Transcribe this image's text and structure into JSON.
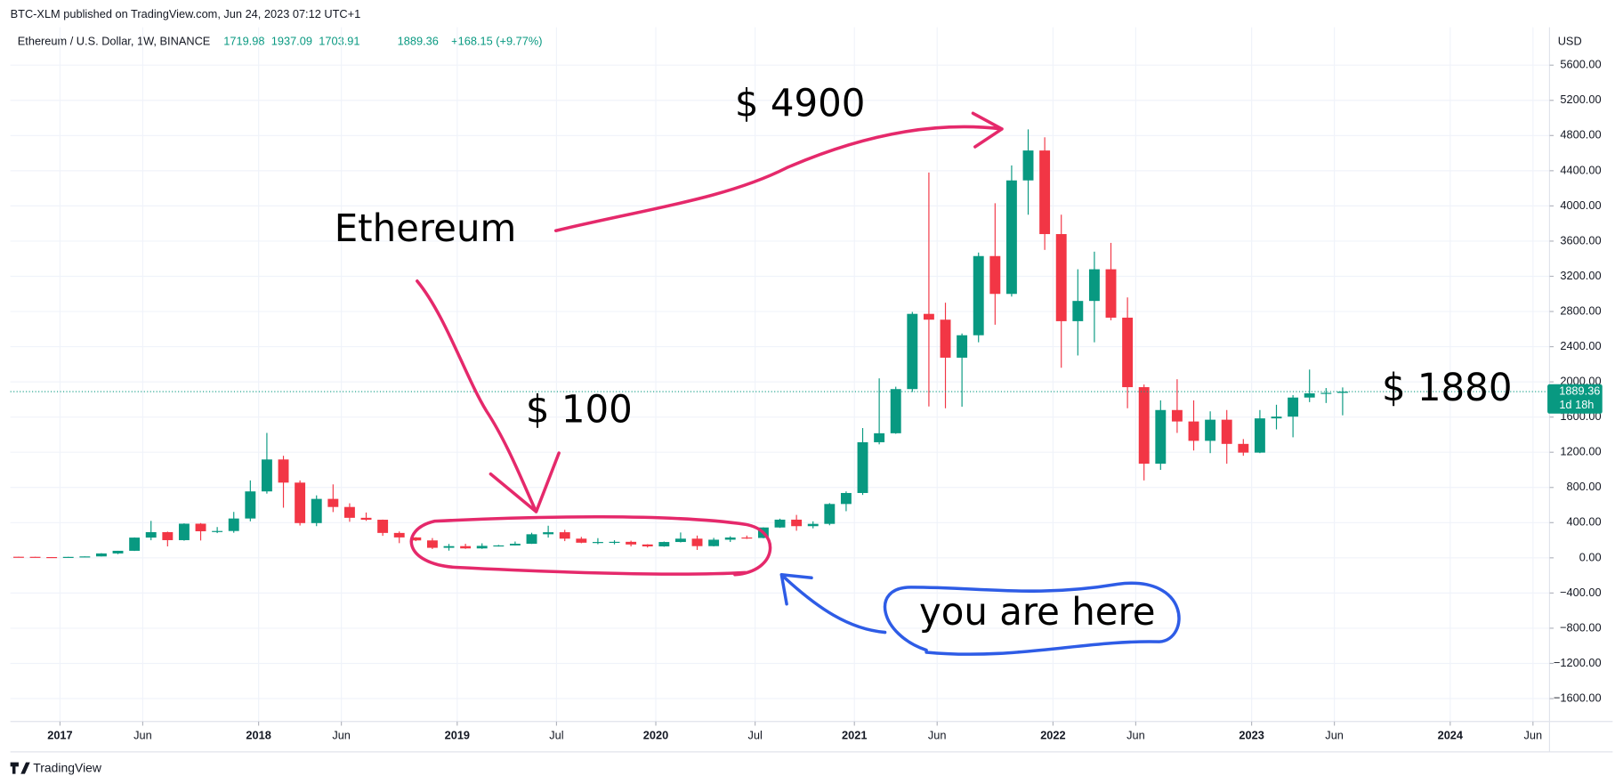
{
  "header": {
    "published": "BTC-XLM published on TradingView.com, Jun 24, 2023 07:12 UTC+1",
    "symbol": "Ethereum / U.S. Dollar, 1W, BINANCE",
    "open": 1719.98,
    "high": 1937.09,
    "low": 1703.91,
    "close": 1889.36,
    "change": "+168.15 (+9.77%)"
  },
  "footer": "TradingView",
  "chart_data": {
    "type": "candlestick",
    "unit": "USD",
    "grid": true,
    "up_color": "#089981",
    "down_color": "#f23645",
    "x": [
      "2016-10",
      "2016-11",
      "2016-12",
      "2017-01",
      "2017-02",
      "2017-03",
      "2017-04",
      "2017-05",
      "2017-06",
      "2017-07",
      "2017-08",
      "2017-09",
      "2017-10",
      "2017-11",
      "2017-12",
      "2018-01",
      "2018-02",
      "2018-03",
      "2018-04",
      "2018-05",
      "2018-06",
      "2018-07",
      "2018-08",
      "2018-09",
      "2018-10",
      "2018-11",
      "2018-12",
      "2019-01",
      "2019-02",
      "2019-03",
      "2019-04",
      "2019-05",
      "2019-06",
      "2019-07",
      "2019-08",
      "2019-09",
      "2019-10",
      "2019-11",
      "2019-12",
      "2020-01",
      "2020-02",
      "2020-03",
      "2020-04",
      "2020-05",
      "2020-06",
      "2020-07",
      "2020-08",
      "2020-09",
      "2020-10",
      "2020-11",
      "2020-12",
      "2021-01",
      "2021-02",
      "2021-03",
      "2021-04",
      "2021-05",
      "2021-06",
      "2021-07",
      "2021-08",
      "2021-09",
      "2021-10",
      "2021-11",
      "2021-12",
      "2022-01",
      "2022-02",
      "2022-03",
      "2022-04",
      "2022-05",
      "2022-06",
      "2022-07",
      "2022-08",
      "2022-09",
      "2022-10",
      "2022-11",
      "2022-12",
      "2023-01",
      "2023-02",
      "2023-03",
      "2023-04",
      "2023-05",
      "2023-06"
    ],
    "open": [
      12.2,
      11.4,
      8.6,
      8.0,
      10.7,
      16,
      50,
      80,
      230,
      292,
      201,
      388,
      302,
      305,
      447,
      755,
      1118,
      855,
      395,
      670,
      578,
      455,
      433,
      283,
      232,
      198,
      114,
      133,
      107,
      136,
      141,
      160,
      268,
      291,
      218,
      172,
      180,
      182,
      152,
      130,
      180,
      218,
      133,
      206,
      231,
      226,
      345,
      434,
      360,
      386,
      612,
      737,
      1314,
      1416,
      1918,
      2773,
      2707,
      2275,
      2530,
      3430,
      3000,
      4290,
      4630,
      3680,
      2690,
      2920,
      3280,
      2730,
      1940,
      1070,
      1680,
      1550,
      1330,
      1570,
      1295,
      1196,
      1585,
      1605,
      1822,
      1870,
      1875
    ],
    "high": [
      14,
      11.6,
      9.0,
      11.4,
      16,
      53,
      80,
      232,
      420,
      298,
      392,
      395,
      350,
      522,
      880,
      1420,
      1160,
      880,
      710,
      835,
      620,
      515,
      435,
      300,
      235,
      225,
      158,
      160,
      165,
      147,
      185,
      285,
      365,
      318,
      238,
      224,
      200,
      195,
      155,
      185,
      288,
      253,
      227,
      245,
      253,
      347,
      445,
      488,
      415,
      622,
      755,
      1475,
      2040,
      1945,
      2795,
      4380,
      2900,
      2550,
      3470,
      4030,
      4460,
      4870,
      4780,
      3900,
      3280,
      3480,
      3580,
      2960,
      1970,
      1790,
      2030,
      1790,
      1665,
      1680,
      1350,
      1680,
      1740,
      1850,
      2140,
      1930,
      1937
    ],
    "low": [
      10.5,
      7.9,
      6.3,
      8.0,
      10.5,
      15.5,
      42,
      78,
      200,
      130,
      195,
      197,
      281,
      285,
      415,
      730,
      570,
      367,
      360,
      520,
      410,
      420,
      250,
      167,
      190,
      100,
      82,
      102,
      102,
      128,
      140,
      158,
      230,
      190,
      166,
      155,
      153,
      130,
      117,
      126,
      175,
      90,
      130,
      180,
      215,
      222,
      340,
      308,
      335,
      370,
      530,
      715,
      1290,
      1410,
      1885,
      1720,
      1700,
      1718,
      2450,
      2650,
      2970,
      3900,
      3500,
      2160,
      2300,
      2450,
      2700,
      1700,
      880,
      1000,
      1420,
      1220,
      1190,
      1070,
      1160,
      1190,
      1460,
      1370,
      1770,
      1760,
      1620
    ],
    "close": [
      11.4,
      8.6,
      8.0,
      10.7,
      16,
      50,
      80,
      230,
      292,
      201,
      388,
      302,
      305,
      447,
      755,
      1118,
      855,
      395,
      670,
      578,
      455,
      433,
      283,
      232,
      198,
      114,
      133,
      107,
      136,
      141,
      160,
      268,
      291,
      218,
      172,
      180,
      182,
      152,
      130,
      180,
      218,
      133,
      206,
      231,
      226,
      345,
      434,
      360,
      386,
      612,
      737,
      1314,
      1416,
      1918,
      2773,
      2707,
      2275,
      2530,
      3430,
      3000,
      4290,
      4630,
      3680,
      2690,
      2920,
      3280,
      2730,
      1940,
      1070,
      1680,
      1550,
      1330,
      1570,
      1295,
      1196,
      1585,
      1605,
      1822,
      1870,
      1875,
      1889
    ],
    "xlim": [
      "2016-10",
      "2024-07"
    ],
    "xticks": [
      {
        "value": "2017-01",
        "label": "2017"
      },
      {
        "value": "2017-06",
        "label": "Jun"
      },
      {
        "value": "2018-01",
        "label": "2018"
      },
      {
        "value": "2018-06",
        "label": "Jun"
      },
      {
        "value": "2019-01",
        "label": "2019"
      },
      {
        "value": "2019-07",
        "label": "Jul"
      },
      {
        "value": "2020-01",
        "label": "2020"
      },
      {
        "value": "2020-07",
        "label": "Jul"
      },
      {
        "value": "2021-01",
        "label": "2021"
      },
      {
        "value": "2021-06",
        "label": "Jun"
      },
      {
        "value": "2022-01",
        "label": "2022"
      },
      {
        "value": "2022-06",
        "label": "Jun"
      },
      {
        "value": "2023-01",
        "label": "2023"
      },
      {
        "value": "2023-06",
        "label": "Jun"
      },
      {
        "value": "2024-01",
        "label": "2024"
      },
      {
        "value": "2024-06",
        "label": "Jun"
      }
    ],
    "ylim": [
      -1860,
      5840
    ],
    "yticks": [
      {
        "value": -1600,
        "label": "−1600.00"
      },
      {
        "value": -1200,
        "label": "−1200.00"
      },
      {
        "value": -800,
        "label": "−800.00"
      },
      {
        "value": -400,
        "label": "−400.00"
      },
      {
        "value": 0,
        "label": "0.00"
      },
      {
        "value": 400,
        "label": "400.00"
      },
      {
        "value": 800,
        "label": "800.00"
      },
      {
        "value": 1200,
        "label": "1200.00"
      },
      {
        "value": 1600,
        "label": "1600.00"
      },
      {
        "value": 2000,
        "label": "2000.00"
      },
      {
        "value": 2400,
        "label": "2400.00"
      },
      {
        "value": 2800,
        "label": "2800.00"
      },
      {
        "value": 3200,
        "label": "3200.00"
      },
      {
        "value": 3600,
        "label": "3600.00"
      },
      {
        "value": 4000,
        "label": "4000.00"
      },
      {
        "value": 4400,
        "label": "4400.00"
      },
      {
        "value": 4800,
        "label": "4800.00"
      },
      {
        "value": 5200,
        "label": "5200.00"
      },
      {
        "value": 5600,
        "label": "5600.00"
      }
    ],
    "last_price": 1889.36,
    "countdown": "1d 18h",
    "annotations": [
      "$ 4900",
      "Ethereum",
      "$ 100",
      "$ 1880",
      "you are here"
    ]
  }
}
